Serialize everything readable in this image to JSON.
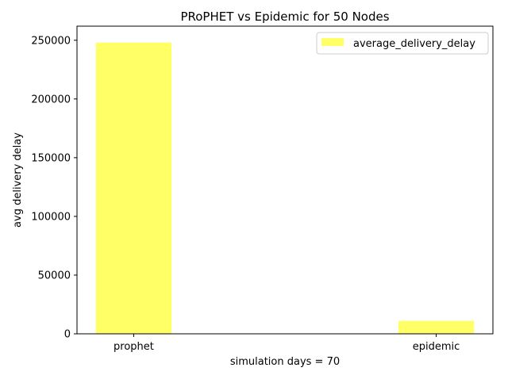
{
  "chart_data": {
    "type": "bar",
    "title": "PRoPHET vs Epidemic for 50 Nodes",
    "xlabel": "simulation days = 70",
    "ylabel": "avg delivery delay",
    "categories": [
      "prophet",
      "epidemic"
    ],
    "series": [
      {
        "name": "average_delivery_delay",
        "values": [
          248000,
          11000
        ],
        "color": "#ffff66"
      }
    ],
    "ylim": [
      0,
      262000
    ],
    "yticks": [
      0,
      50000,
      100000,
      150000,
      200000,
      250000
    ],
    "legend_position": "top-right",
    "grid": false
  }
}
